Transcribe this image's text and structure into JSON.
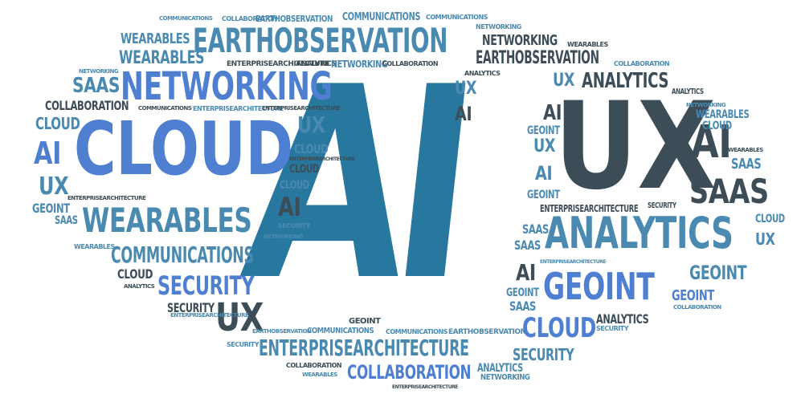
{
  "words": {
    "ai": "AI",
    "ux": "UX",
    "cloud": "CLOUD",
    "networking": "NETWORKING",
    "earthobservation": "EARTHOBSERVATION",
    "wearables": "WEARABLES",
    "analytics": "ANALYTICS",
    "geoint": "GEOINT",
    "saas": "SAAS",
    "security": "SECURITY",
    "communications": "COMMUNICATIONS",
    "collaboration": "COLLABORATION",
    "enterprisearchitecture": "ENTERPRISEARCHITECTURE"
  },
  "colors": {
    "light_blue": "#4f7fd0",
    "steel_blue": "#4a8ab1",
    "dark_slate": "#3c4d57",
    "teal_blue": "#28779e"
  }
}
